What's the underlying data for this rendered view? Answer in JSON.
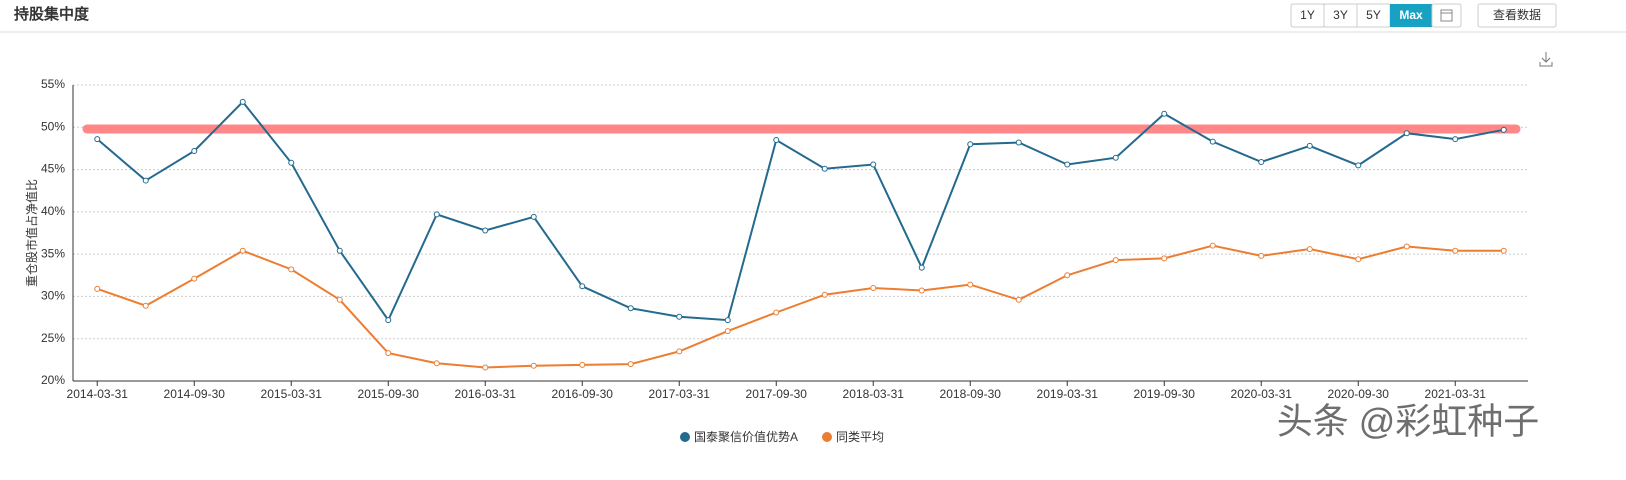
{
  "header": {
    "title": "持股集中度",
    "buttons": [
      "1Y",
      "3Y",
      "5Y",
      "Max"
    ],
    "active_button": "Max",
    "view_data": "查看数据"
  },
  "chart_data": {
    "type": "line",
    "y_label": "重仓股市值占净值比",
    "categories": [
      "2014-03-31",
      null,
      "2014-09-30",
      null,
      "2015-03-31",
      null,
      "2015-09-30",
      null,
      "2016-03-31",
      null,
      "2016-09-30",
      null,
      "2017-03-31",
      null,
      "2017-09-30",
      null,
      "2018-03-31",
      null,
      "2018-09-30",
      null,
      "2019-03-31",
      null,
      "2019-09-30",
      null,
      "2020-03-31",
      null,
      "2020-09-30",
      null,
      "2021-03-31",
      null
    ],
    "series": [
      {
        "name": "国泰聚信价值优势A",
        "color": "#236a8e",
        "values": [
          48.6,
          43.7,
          47.2,
          53.0,
          45.8,
          35.4,
          27.2,
          39.7,
          37.8,
          39.4,
          31.2,
          28.6,
          27.6,
          27.2,
          48.5,
          45.1,
          45.6,
          33.4,
          48.0,
          48.2,
          45.6,
          46.4,
          51.6,
          48.3,
          45.9,
          47.8,
          45.5,
          49.3,
          48.6,
          49.7
        ]
      },
      {
        "name": "同类平均",
        "color": "#ed7d31",
        "values": [
          30.9,
          28.9,
          32.1,
          35.4,
          33.2,
          29.6,
          23.3,
          22.1,
          21.6,
          21.8,
          21.9,
          22.0,
          23.5,
          25.9,
          28.1,
          30.2,
          31.0,
          30.7,
          31.4,
          29.6,
          32.5,
          34.3,
          34.5,
          36.0,
          34.8,
          35.6,
          34.4,
          35.9,
          35.4,
          35.4
        ]
      }
    ],
    "highlight_line": {
      "value": 49.8,
      "color": "#ff7b7b"
    },
    "ylim": [
      20,
      55
    ],
    "yticks": [
      {
        "value": 20,
        "label": "20%"
      },
      {
        "value": 25,
        "label": "25%"
      },
      {
        "value": 30,
        "label": "30%"
      },
      {
        "value": 35,
        "label": "35%"
      },
      {
        "value": 40,
        "label": "40%"
      },
      {
        "value": 45,
        "label": "45%"
      },
      {
        "value": 50,
        "label": "50%"
      },
      {
        "value": 55,
        "label": "55%"
      }
    ],
    "grid": true
  },
  "watermark": "头条 @彩虹种子"
}
